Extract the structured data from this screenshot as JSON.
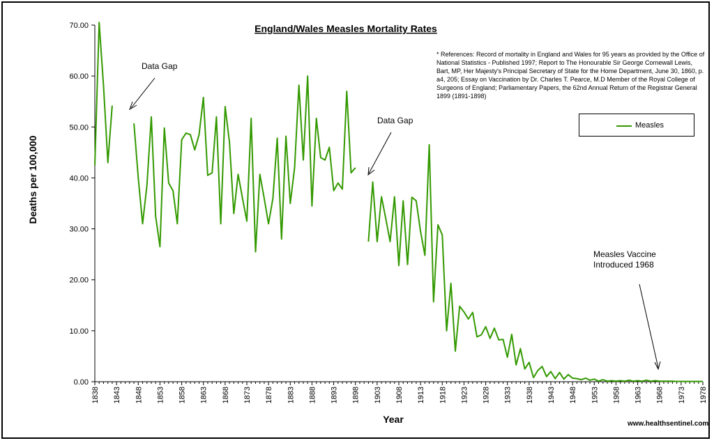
{
  "chart_data": {
    "type": "line",
    "title": "England/Wales Measles Mortality Rates",
    "xlabel": "Year",
    "ylabel": "Deaths per 100,000",
    "xlim": [
      1838,
      1978
    ],
    "ylim": [
      0,
      70
    ],
    "y_ticks": [
      "0.00",
      "10.00",
      "20.00",
      "30.00",
      "40.00",
      "50.00",
      "60.00",
      "70.00"
    ],
    "x_ticks": [
      "1838",
      "1843",
      "1848",
      "1853",
      "1858",
      "1863",
      "1868",
      "1873",
      "1878",
      "1883",
      "1888",
      "1893",
      "1898",
      "1903",
      "1908",
      "1913",
      "1918",
      "1923",
      "1928",
      "1933",
      "1938",
      "1943",
      "1948",
      "1953",
      "1958",
      "1963",
      "1968",
      "1973",
      "1978"
    ],
    "grid": false,
    "legend_position": "top-right",
    "series": [
      {
        "name": "Measles",
        "color": "#339900",
        "segments": [
          [
            [
              1838,
              42.5
            ],
            [
              1839,
              70.5
            ],
            [
              1840,
              58.0
            ],
            [
              1841,
              43.0
            ],
            [
              1842,
              54.2
            ]
          ],
          [
            [
              1847,
              50.7
            ],
            [
              1848,
              40.0
            ],
            [
              1849,
              31.0
            ],
            [
              1850,
              38.5
            ],
            [
              1851,
              52.0
            ],
            [
              1852,
              32.5
            ],
            [
              1853,
              26.5
            ],
            [
              1854,
              49.8
            ],
            [
              1855,
              39.0
            ],
            [
              1856,
              37.5
            ],
            [
              1857,
              31.0
            ],
            [
              1858,
              47.5
            ],
            [
              1859,
              48.8
            ],
            [
              1860,
              48.5
            ],
            [
              1861,
              45.5
            ],
            [
              1862,
              48.5
            ],
            [
              1863,
              55.8
            ],
            [
              1864,
              40.5
            ],
            [
              1865,
              41.0
            ],
            [
              1866,
              52.0
            ],
            [
              1867,
              31.0
            ],
            [
              1868,
              54.0
            ],
            [
              1869,
              47.0
            ],
            [
              1870,
              33.0
            ],
            [
              1871,
              40.7
            ],
            [
              1872,
              36.0
            ],
            [
              1873,
              31.5
            ],
            [
              1874,
              51.7
            ],
            [
              1875,
              25.5
            ],
            [
              1876,
              40.7
            ],
            [
              1877,
              36.0
            ],
            [
              1878,
              31.0
            ],
            [
              1879,
              36.0
            ],
            [
              1880,
              47.8
            ],
            [
              1881,
              28.0
            ],
            [
              1882,
              48.2
            ],
            [
              1883,
              35.0
            ],
            [
              1884,
              42.0
            ],
            [
              1885,
              58.2
            ],
            [
              1886,
              43.5
            ],
            [
              1887,
              60.0
            ],
            [
              1888,
              34.5
            ],
            [
              1889,
              51.7
            ],
            [
              1890,
              44.0
            ],
            [
              1891,
              43.5
            ],
            [
              1892,
              46.0
            ],
            [
              1893,
              37.5
            ],
            [
              1894,
              39.0
            ],
            [
              1895,
              37.8
            ],
            [
              1896,
              57.0
            ],
            [
              1897,
              41.0
            ],
            [
              1898,
              42.0
            ]
          ],
          [
            [
              1901,
              27.5
            ],
            [
              1902,
              39.2
            ],
            [
              1903,
              27.5
            ],
            [
              1904,
              36.3
            ],
            [
              1905,
              32.0
            ],
            [
              1906,
              27.5
            ],
            [
              1907,
              36.3
            ],
            [
              1908,
              22.8
            ],
            [
              1909,
              35.5
            ],
            [
              1910,
              23.0
            ],
            [
              1911,
              36.2
            ],
            [
              1912,
              35.5
            ],
            [
              1913,
              29.5
            ],
            [
              1914,
              24.8
            ],
            [
              1915,
              46.5
            ],
            [
              1916,
              15.7
            ],
            [
              1917,
              30.8
            ],
            [
              1918,
              28.8
            ],
            [
              1919,
              10.0
            ],
            [
              1920,
              19.3
            ],
            [
              1921,
              6.0
            ],
            [
              1922,
              14.8
            ],
            [
              1923,
              13.7
            ],
            [
              1924,
              12.3
            ],
            [
              1925,
              13.6
            ],
            [
              1926,
              8.8
            ],
            [
              1927,
              9.2
            ],
            [
              1928,
              10.8
            ],
            [
              1929,
              8.5
            ],
            [
              1930,
              10.5
            ],
            [
              1931,
              8.2
            ],
            [
              1932,
              8.3
            ],
            [
              1933,
              4.8
            ],
            [
              1934,
              9.3
            ],
            [
              1935,
              3.3
            ],
            [
              1936,
              6.5
            ],
            [
              1937,
              2.5
            ],
            [
              1938,
              3.8
            ],
            [
              1939,
              0.8
            ],
            [
              1940,
              2.2
            ],
            [
              1941,
              3.0
            ],
            [
              1942,
              1.0
            ],
            [
              1943,
              2.0
            ],
            [
              1944,
              0.6
            ],
            [
              1945,
              1.8
            ],
            [
              1946,
              0.5
            ],
            [
              1947,
              1.4
            ],
            [
              1948,
              0.7
            ],
            [
              1949,
              0.6
            ],
            [
              1950,
              0.4
            ],
            [
              1951,
              0.7
            ],
            [
              1952,
              0.3
            ],
            [
              1953,
              0.5
            ],
            [
              1954,
              0.1
            ],
            [
              1955,
              0.4
            ],
            [
              1956,
              0.1
            ],
            [
              1957,
              0.2
            ],
            [
              1958,
              0.1
            ],
            [
              1959,
              0.2
            ],
            [
              1960,
              0.1
            ],
            [
              1961,
              0.3
            ],
            [
              1962,
              0.1
            ],
            [
              1963,
              0.2
            ],
            [
              1964,
              0.1
            ],
            [
              1965,
              0.3
            ],
            [
              1966,
              0.1
            ],
            [
              1967,
              0.2
            ],
            [
              1968,
              0.1
            ],
            [
              1969,
              0.1
            ],
            [
              1970,
              0.1
            ],
            [
              1971,
              0.1
            ],
            [
              1972,
              0.05
            ],
            [
              1973,
              0.05
            ],
            [
              1974,
              0.05
            ],
            [
              1975,
              0.05
            ],
            [
              1976,
              0.05
            ],
            [
              1977,
              0.05
            ],
            [
              1978,
              0.05
            ]
          ]
        ]
      }
    ],
    "annotations": {
      "data_gap_1": "Data Gap",
      "data_gap_2": "Data Gap",
      "vaccine_line1": "Measles Vaccine",
      "vaccine_line2": "Introduced 1968"
    }
  },
  "references": "* References: Record of mortality in England and Wales for 95 years as provided by the Office of National Statistics - Published 1997; Report to The Honourable Sir George Cornewall Lewis, Bart, MP, Her Majesty's Principal Secretary of State for the Home Department, June 30, 1860, p. a4, 205; Essay on Vaccination by Dr. Charles T. Pearce, M.D Member of the Royal College of Surgeons of England; Parliamentary Papers, the 62nd Annual Return of the Registrar General 1899 (1891-1898)",
  "legend": {
    "label": "Measles"
  },
  "footer": {
    "website": "www.healthsentinel.com"
  }
}
